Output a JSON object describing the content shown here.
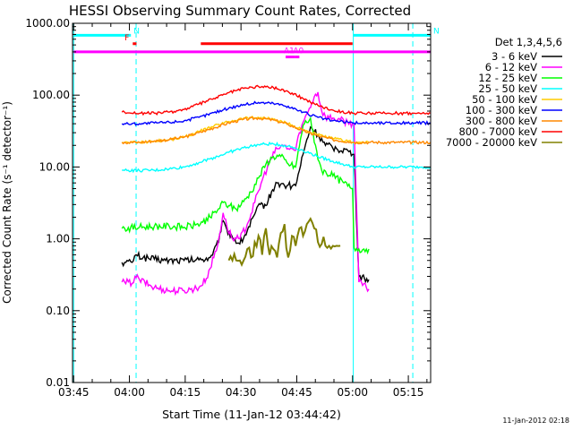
{
  "chart_data": {
    "type": "line",
    "title": "HESSI Observing Summary Count Rates, Corrected",
    "xlabel": "Start Time (11-Jan-12 03:44:42)",
    "ylabel": "Corrected Count Rate (s⁻¹ detector⁻¹)",
    "y_scale": "log",
    "ylim": [
      0.01,
      1000
    ],
    "xlim_minutes": [
      0,
      96.3
    ],
    "x_tick_labels": [
      "03:45",
      "04:00",
      "04:15",
      "04:30",
      "04:45",
      "05:00",
      "05:15"
    ],
    "x_tick_minutes": [
      0.3,
      15.3,
      30.3,
      45.3,
      60.3,
      75.3,
      90.3
    ],
    "y_tick_labels": [
      "0.01",
      "0.10",
      "1.00",
      "10.00",
      "100.00",
      "1000.00"
    ],
    "y_tick_values": [
      0.01,
      0.1,
      1,
      10,
      100,
      1000
    ],
    "legend_title": "Det 1,3,4,5,6",
    "legend_position": "right",
    "series": [
      {
        "name": "3 - 6 keV",
        "color": "#000000",
        "x": [
          13.3,
          14,
          16,
          16.7,
          17.5,
          19,
          22,
          25,
          30,
          34,
          37,
          39.3,
          40.2,
          41.5,
          43,
          45,
          47,
          49,
          50.5,
          52,
          53.5,
          55,
          56,
          57,
          58,
          59,
          60,
          62,
          64,
          66,
          68,
          71,
          74,
          75.3,
          75.7,
          77,
          78.5,
          79.7
        ],
        "y": [
          0.47,
          0.47,
          0.47,
          0.58,
          0.58,
          0.55,
          0.52,
          0.5,
          0.5,
          0.51,
          0.55,
          0.9,
          1.7,
          1.35,
          1.05,
          0.85,
          1.3,
          2.2,
          3.0,
          2.9,
          4.5,
          6,
          5.8,
          5.5,
          5.6,
          5.4,
          5.5,
          15,
          36,
          28,
          20,
          18,
          17,
          15,
          15,
          0.3,
          0.28,
          0.27
        ]
      },
      {
        "name": "6 - 12 keV",
        "color": "#ff00ff",
        "x": [
          13.3,
          14,
          16,
          16.8,
          18,
          22,
          26,
          30,
          34,
          36,
          39,
          40.5,
          41.5,
          43,
          45,
          47,
          49,
          51,
          53,
          55,
          57,
          58,
          59,
          60,
          61,
          63,
          65,
          66,
          67,
          68,
          70,
          72,
          74,
          75.3,
          75.7,
          77,
          79.7
        ],
        "y": [
          0.25,
          0.25,
          0.24,
          0.3,
          0.27,
          0.21,
          0.19,
          0.19,
          0.21,
          0.28,
          0.8,
          2.3,
          1.5,
          1.0,
          1.0,
          1.6,
          3.2,
          6.5,
          12,
          18,
          20,
          18,
          18,
          17,
          30,
          55,
          95,
          110,
          60,
          50,
          48,
          45,
          42,
          40,
          40,
          0.25,
          0.2
        ]
      },
      {
        "name": "12 - 25 keV",
        "color": "#00ff00",
        "x": [
          13.3,
          14,
          18,
          22,
          26,
          30,
          33,
          35,
          37,
          39,
          40.5,
          42,
          44,
          46,
          48,
          50,
          52,
          54,
          56,
          58,
          60,
          62,
          64,
          65,
          67,
          70,
          73,
          75,
          75.3,
          75.7,
          77,
          79.7
        ],
        "y": [
          1.4,
          1.4,
          1.45,
          1.5,
          1.5,
          1.45,
          1.55,
          1.7,
          2.0,
          2.5,
          3.2,
          2.9,
          2.6,
          3.3,
          4.5,
          7,
          11,
          14,
          14,
          11,
          10,
          38,
          48,
          22,
          9,
          7.5,
          6,
          5,
          5,
          0.75,
          0.72,
          0.72
        ]
      },
      {
        "name": "25 - 50 keV",
        "color": "#00ffff",
        "x": [
          13.3,
          14,
          18,
          22,
          26,
          30,
          34,
          38,
          42,
          46,
          50,
          54,
          58,
          62,
          66,
          70,
          74,
          75.3,
          75.7,
          78,
          80,
          82,
          84,
          86,
          88,
          90,
          92,
          94,
          96.3
        ],
        "y": [
          9,
          9,
          8.9,
          9,
          9.4,
          10,
          11.5,
          13.5,
          16,
          18.5,
          20.5,
          21,
          19.5,
          17,
          14,
          12,
          10.5,
          10,
          10,
          10,
          10,
          10,
          10,
          10,
          10,
          10,
          10,
          10,
          10
        ]
      },
      {
        "name": "50 - 100 keV",
        "color": "#ffcc00",
        "x": [
          13.3,
          14,
          18,
          22,
          26,
          30,
          34,
          38,
          42,
          46,
          50,
          54,
          58,
          62,
          66,
          70,
          74,
          75.3,
          75.7,
          79.7
        ],
        "y": [
          22,
          22,
          22,
          23,
          24,
          26,
          31,
          37,
          43,
          48,
          49,
          46,
          40,
          33,
          28,
          25,
          23,
          22,
          22,
          22
        ]
      },
      {
        "name": "100 - 300 keV",
        "color": "#0000ff",
        "x": [
          13.3,
          14,
          18,
          22,
          26,
          30,
          34,
          38,
          42,
          46,
          50,
          54,
          58,
          62,
          66,
          70,
          74,
          75.3,
          75.7,
          78,
          80,
          84,
          88,
          92,
          96.3
        ],
        "y": [
          40,
          40,
          40,
          41,
          42,
          44,
          49,
          57,
          66,
          74,
          79,
          77,
          70,
          58,
          49,
          44,
          42,
          41,
          41,
          41,
          41,
          41,
          41,
          41,
          41
        ]
      },
      {
        "name": "300 - 800 keV",
        "color": "#ff8800",
        "x": [
          13.3,
          14,
          18,
          22,
          26,
          30,
          34,
          38,
          42,
          46,
          50,
          54,
          58,
          62,
          66,
          70,
          74,
          75.3,
          75.7,
          78,
          80,
          84,
          88,
          92,
          96.3
        ],
        "y": [
          22,
          22,
          22,
          23,
          24,
          26,
          30,
          35,
          41,
          46,
          48,
          45,
          39,
          32,
          27,
          24,
          22.5,
          22,
          22,
          22,
          22,
          22,
          22,
          22,
          22
        ]
      },
      {
        "name": "800 - 7000 keV",
        "color": "#ff0000",
        "x": [
          13.3,
          14,
          18,
          22,
          26,
          30,
          34,
          38,
          42,
          46,
          50,
          54,
          58,
          62,
          66,
          70,
          74,
          75.3,
          75.7,
          78,
          80,
          84,
          88,
          92,
          96.3
        ],
        "y": [
          58,
          58,
          56,
          56,
          58,
          63,
          75,
          90,
          108,
          124,
          132,
          128,
          112,
          90,
          72,
          62,
          57,
          56,
          56,
          56,
          56,
          56,
          56,
          56,
          56
        ]
      },
      {
        "name": "7000 - 20000 keV",
        "color": "#808000",
        "x": [
          42,
          43,
          44,
          45,
          46,
          47,
          48,
          49,
          50,
          51,
          52,
          53,
          54,
          55,
          56,
          57,
          58,
          59,
          60,
          61,
          62,
          63,
          64,
          65,
          66,
          67,
          68,
          69,
          70,
          71,
          72
        ],
        "y": [
          0.5,
          0.5,
          0.5,
          0.5,
          0.5,
          0.72,
          0.55,
          0.9,
          1.1,
          0.6,
          1.4,
          0.6,
          0.72,
          0.55,
          1.2,
          1.6,
          0.55,
          1.1,
          0.8,
          1.4,
          1.1,
          1.6,
          1.9,
          1.4,
          0.9,
          0.85,
          0.8,
          0.8,
          0.8,
          0.8,
          0.8
        ]
      }
    ],
    "flag_bars": [
      {
        "label": "N",
        "color": "#00ffff",
        "x0": 0.3,
        "x1": 15.7,
        "y": 680
      },
      {
        "label": "N",
        "color": "#00ffff",
        "x0": 75.5,
        "x1": 96.3,
        "y": 680
      },
      {
        "label": "F",
        "color": "#ff0000",
        "x0": 16.2,
        "x1": 17.2,
        "y": 520
      },
      {
        "label": "",
        "color": "#ff0000",
        "x0": 34.5,
        "x1": 75.3,
        "y": 520
      },
      {
        "label": "",
        "color": "#ff00ff",
        "x0": 0.3,
        "x1": 96.3,
        "y": 400
      },
      {
        "label": "A1",
        "color": "#ff00ff",
        "x0": 57.3,
        "x1": 59.8,
        "y": 340
      },
      {
        "label": "A0",
        "color": "#ff00ff",
        "x0": 59.8,
        "x1": 61,
        "y": 340
      }
    ],
    "vlines": [
      {
        "x": 0.3,
        "style": "solid",
        "color": "#00ffff"
      },
      {
        "x": 17.1,
        "style": "dashed",
        "color": "#00ffff"
      },
      {
        "x": 75.5,
        "style": "solid",
        "color": "#00ffff"
      },
      {
        "x": 91.5,
        "style": "dashed",
        "color": "#00ffff"
      }
    ]
  },
  "footer_timestamp": "11-Jan-2012 02:18"
}
